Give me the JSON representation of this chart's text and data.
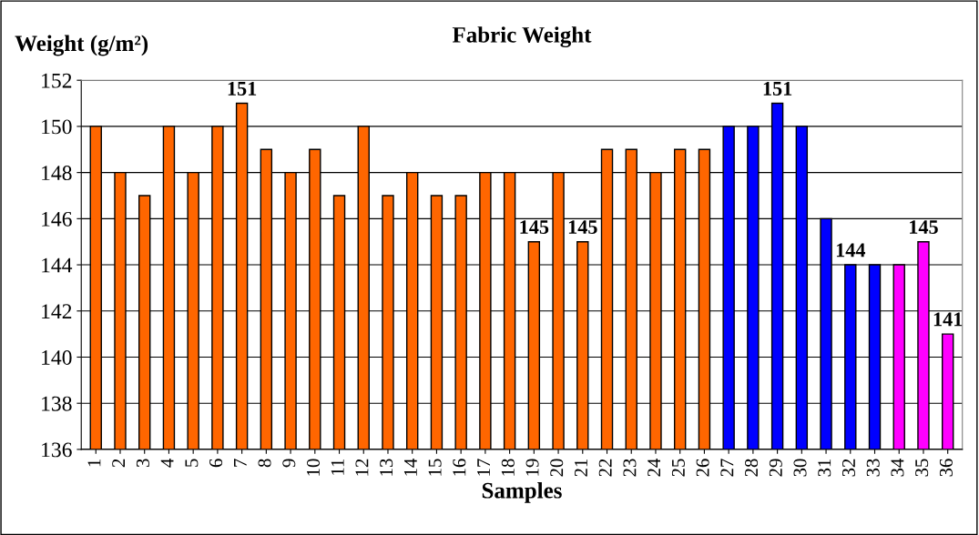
{
  "chart_data": {
    "type": "bar",
    "title": "Fabric Weight",
    "xlabel": "Samples",
    "ylabel": "Weight (g/m²)",
    "categories": [
      "1",
      "2",
      "3",
      "4",
      "5",
      "6",
      "7",
      "8",
      "9",
      "10",
      "11",
      "12",
      "13",
      "14",
      "15",
      "16",
      "17",
      "18",
      "19",
      "20",
      "21",
      "22",
      "23",
      "24",
      "25",
      "26",
      "27",
      "28",
      "29",
      "30",
      "31",
      "32",
      "33",
      "34",
      "35",
      "36"
    ],
    "values": [
      150,
      148,
      147,
      150,
      148,
      150,
      151,
      149,
      148,
      149,
      147,
      150,
      147,
      148,
      147,
      147,
      148,
      148,
      145,
      148,
      145,
      149,
      149,
      148,
      149,
      149,
      150,
      150,
      151,
      150,
      146,
      144,
      144,
      144,
      145,
      141
    ],
    "colors": [
      "#ff6600",
      "#ff6600",
      "#ff6600",
      "#ff6600",
      "#ff6600",
      "#ff6600",
      "#ff6600",
      "#ff6600",
      "#ff6600",
      "#ff6600",
      "#ff6600",
      "#ff6600",
      "#ff6600",
      "#ff6600",
      "#ff6600",
      "#ff6600",
      "#ff6600",
      "#ff6600",
      "#ff6600",
      "#ff6600",
      "#ff6600",
      "#ff6600",
      "#ff6600",
      "#ff6600",
      "#ff6600",
      "#ff6600",
      "#0000ff",
      "#0000ff",
      "#0000ff",
      "#0000ff",
      "#0000ff",
      "#0000ff",
      "#0000ff",
      "#ff00ff",
      "#ff00ff",
      "#ff00ff"
    ],
    "value_labels": [
      null,
      null,
      null,
      null,
      null,
      null,
      "151",
      null,
      null,
      null,
      null,
      null,
      null,
      null,
      null,
      null,
      null,
      null,
      "145",
      null,
      "145",
      null,
      null,
      null,
      null,
      null,
      null,
      null,
      "151",
      null,
      null,
      "144",
      null,
      null,
      "145",
      "141"
    ],
    "ylim": [
      136,
      152
    ],
    "yticks": [
      136,
      138,
      140,
      142,
      144,
      146,
      148,
      150,
      152
    ],
    "grid": "y",
    "legend": false
  }
}
